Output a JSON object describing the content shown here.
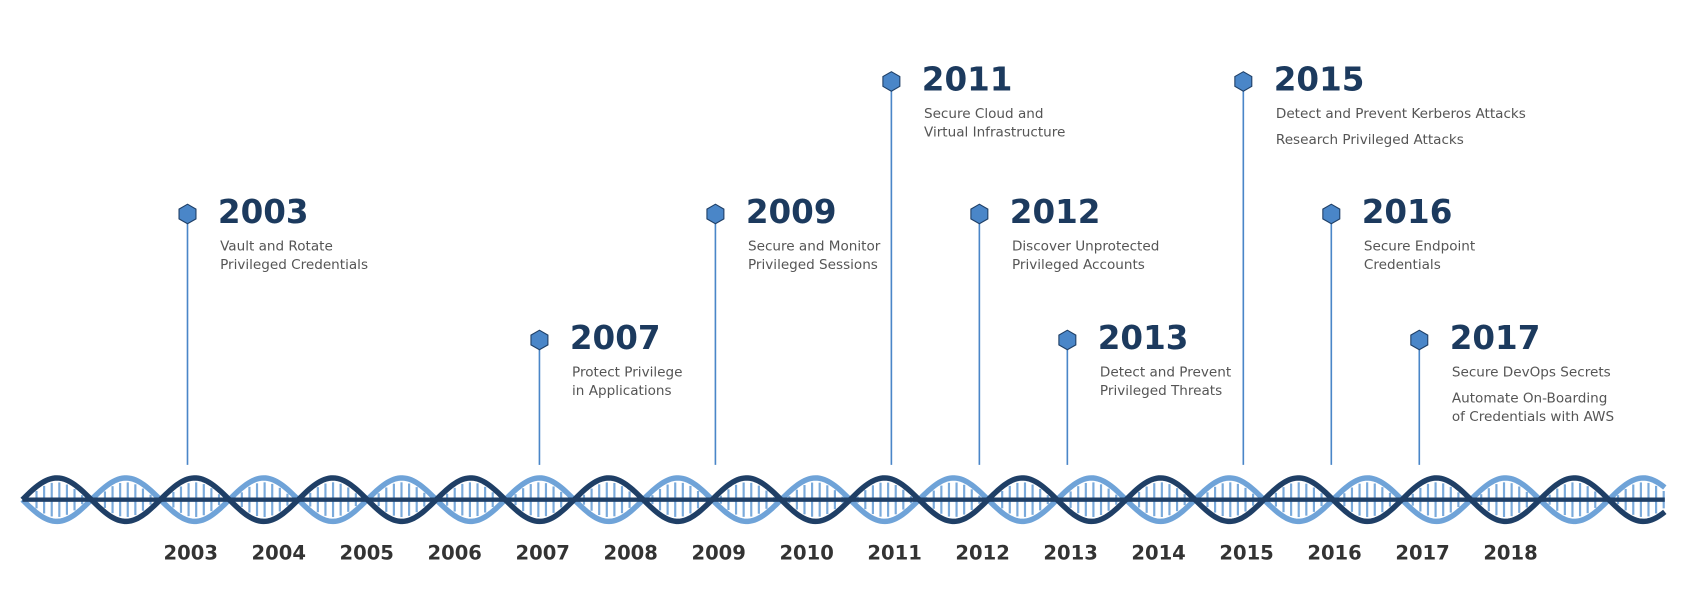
{
  "events": [
    {
      "year": "2003",
      "items": [
        [
          "Vault and Rotate",
          "Privileged Credentials"
        ]
      ]
    },
    {
      "year": "2007",
      "items": [
        [
          "Protect Privilege",
          "in Applications"
        ]
      ]
    },
    {
      "year": "2009",
      "items": [
        [
          "Secure and Monitor",
          "Privileged Sessions"
        ]
      ]
    },
    {
      "year": "2011",
      "items": [
        [
          "Secure Cloud and",
          "Virtual Infrastructure"
        ]
      ]
    },
    {
      "year": "2012",
      "items": [
        [
          "Discover Unprotected",
          "Privileged Accounts"
        ]
      ]
    },
    {
      "year": "2013",
      "items": [
        [
          "Detect and Prevent",
          "Privileged Threats"
        ]
      ]
    },
    {
      "year": "2015",
      "items": [
        [
          "Detect and Prevent Kerberos Attacks"
        ],
        [
          "Research Privileged Attacks"
        ]
      ]
    },
    {
      "year": "2016",
      "items": [
        [
          "Secure Endpoint",
          "Credentials"
        ]
      ]
    },
    {
      "year": "2017",
      "items": [
        [
          "Secure DevOps Secrets"
        ],
        [
          "Automate On-Boarding",
          "of Credentials with AWS"
        ]
      ]
    }
  ],
  "axis": [
    "2003",
    "2004",
    "2005",
    "2006",
    "2007",
    "2008",
    "2009",
    "2010",
    "2011",
    "2012",
    "2013",
    "2014",
    "2015",
    "2016",
    "2017",
    "2018"
  ]
}
